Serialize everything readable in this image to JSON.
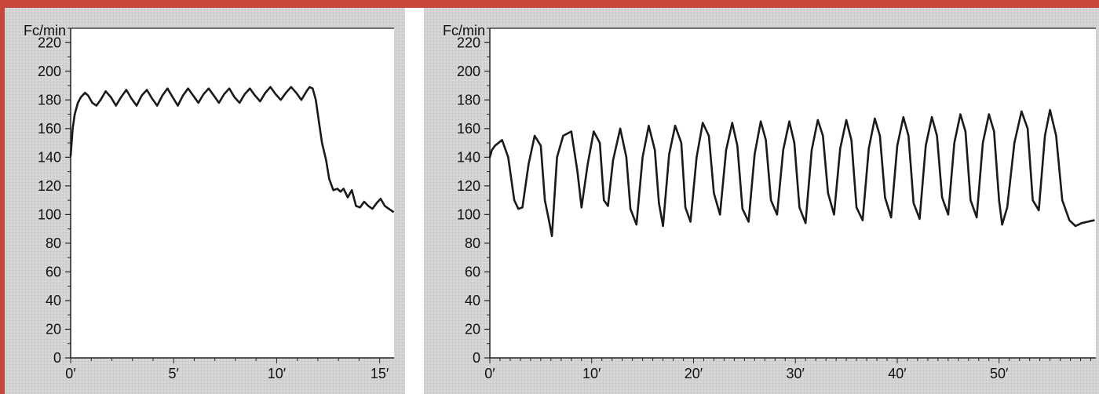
{
  "colors": {
    "frame": "#c8473c",
    "panel_bg": "#d2d2d2",
    "plot_bg": "#ffffff",
    "line": "#1a1a1a"
  },
  "chart_data": [
    {
      "type": "line",
      "title": "",
      "ylabel": "Fc/min",
      "xlabel": "",
      "ylim": [
        0,
        230
      ],
      "xlim": [
        0,
        15.7
      ],
      "grid": false,
      "y_ticks": [
        0,
        20,
        40,
        60,
        80,
        100,
        120,
        140,
        160,
        180,
        200,
        220
      ],
      "x_ticks": [
        0,
        5,
        10,
        15
      ],
      "x_tick_labels": [
        "0′",
        "5′",
        "10′",
        "15′"
      ],
      "series": [
        {
          "x": [
            0,
            0.1,
            0.2,
            0.35,
            0.5,
            0.7,
            0.85,
            1.05,
            1.25,
            1.45,
            1.7,
            1.95,
            2.2,
            2.45,
            2.7,
            2.95,
            3.2,
            3.45,
            3.7,
            3.95,
            4.2,
            4.45,
            4.7,
            4.95,
            5.2,
            5.45,
            5.7,
            5.95,
            6.2,
            6.45,
            6.7,
            6.95,
            7.2,
            7.45,
            7.7,
            7.95,
            8.2,
            8.45,
            8.7,
            8.95,
            9.2,
            9.45,
            9.7,
            9.95,
            10.2,
            10.45,
            10.7,
            10.95,
            11.2,
            11.45,
            11.6,
            11.75,
            11.9,
            12.05,
            12.2,
            12.4,
            12.55,
            12.75,
            12.95,
            13.1,
            13.25,
            13.45,
            13.65,
            13.85,
            14.05,
            14.25,
            14.45,
            14.65,
            14.85,
            15.05,
            15.25,
            15.45,
            15.65
          ],
          "y": [
            141,
            160,
            170,
            178,
            182,
            185,
            183,
            178,
            176,
            180,
            186,
            182,
            176,
            182,
            187,
            181,
            176,
            183,
            187,
            181,
            176,
            183,
            188,
            182,
            176,
            183,
            188,
            183,
            178,
            184,
            188,
            183,
            178,
            184,
            188,
            182,
            178,
            184,
            188,
            183,
            179,
            185,
            189,
            184,
            180,
            185,
            189,
            185,
            180,
            186,
            189,
            188,
            180,
            165,
            150,
            138,
            125,
            117,
            118,
            116,
            118,
            112,
            117,
            106,
            105,
            109,
            106,
            104,
            108,
            111,
            106,
            104,
            102
          ]
        }
      ]
    },
    {
      "type": "line",
      "title": "",
      "ylabel": "Fc/min",
      "xlabel": "",
      "ylim": [
        0,
        230
      ],
      "xlim": [
        0,
        59.5
      ],
      "grid": false,
      "y_ticks": [
        0,
        20,
        40,
        60,
        80,
        100,
        120,
        140,
        160,
        180,
        200,
        220
      ],
      "x_ticks": [
        0,
        10,
        20,
        30,
        40,
        50
      ],
      "x_tick_labels": [
        "0′",
        "10′",
        "20′",
        "30′",
        "40′",
        "50′"
      ],
      "series": [
        {
          "x": [
            0,
            0.2,
            0.5,
            1.2,
            1.8,
            2.4,
            2.8,
            3.2,
            3.8,
            4.4,
            5.0,
            5.4,
            5.8,
            6.1,
            6.6,
            7.2,
            8.0,
            8.6,
            9.0,
            9.6,
            10.2,
            10.8,
            11.2,
            11.6,
            12.1,
            12.8,
            13.4,
            13.8,
            14.4,
            15.0,
            15.6,
            16.2,
            16.6,
            17.0,
            17.6,
            18.2,
            18.8,
            19.2,
            19.7,
            20.3,
            20.9,
            21.5,
            22.0,
            22.6,
            23.2,
            23.8,
            24.3,
            24.8,
            25.4,
            26.0,
            26.6,
            27.1,
            27.6,
            28.2,
            28.8,
            29.4,
            29.9,
            30.4,
            31.0,
            31.6,
            32.2,
            32.7,
            33.2,
            33.8,
            34.4,
            35.0,
            35.5,
            36.0,
            36.6,
            37.2,
            37.8,
            38.3,
            38.8,
            39.4,
            40.0,
            40.6,
            41.1,
            41.6,
            42.2,
            42.8,
            43.4,
            43.9,
            44.4,
            45.0,
            45.6,
            46.2,
            46.7,
            47.2,
            47.8,
            48.4,
            49.0,
            49.5,
            50.0,
            50.3,
            50.8,
            51.5,
            52.2,
            52.8,
            53.3,
            53.9,
            54.5,
            55.0,
            55.6,
            56.2,
            56.9,
            57.5,
            58.1,
            58.7,
            59.3
          ],
          "y": [
            140,
            145,
            148,
            152,
            140,
            110,
            104,
            105,
            135,
            155,
            148,
            110,
            96,
            85,
            140,
            155,
            158,
            130,
            105,
            135,
            158,
            150,
            110,
            106,
            138,
            160,
            140,
            104,
            93,
            140,
            162,
            145,
            108,
            92,
            142,
            162,
            150,
            105,
            95,
            140,
            164,
            155,
            115,
            100,
            145,
            164,
            148,
            104,
            95,
            142,
            165,
            152,
            110,
            100,
            145,
            165,
            150,
            105,
            94,
            145,
            166,
            155,
            115,
            100,
            146,
            166,
            152,
            105,
            96,
            146,
            167,
            155,
            112,
            98,
            148,
            168,
            155,
            108,
            97,
            148,
            168,
            155,
            112,
            100,
            150,
            170,
            158,
            110,
            98,
            150,
            170,
            158,
            110,
            93,
            105,
            150,
            172,
            160,
            110,
            103,
            155,
            173,
            155,
            110,
            96,
            92,
            94,
            95,
            96
          ]
        }
      ]
    }
  ]
}
